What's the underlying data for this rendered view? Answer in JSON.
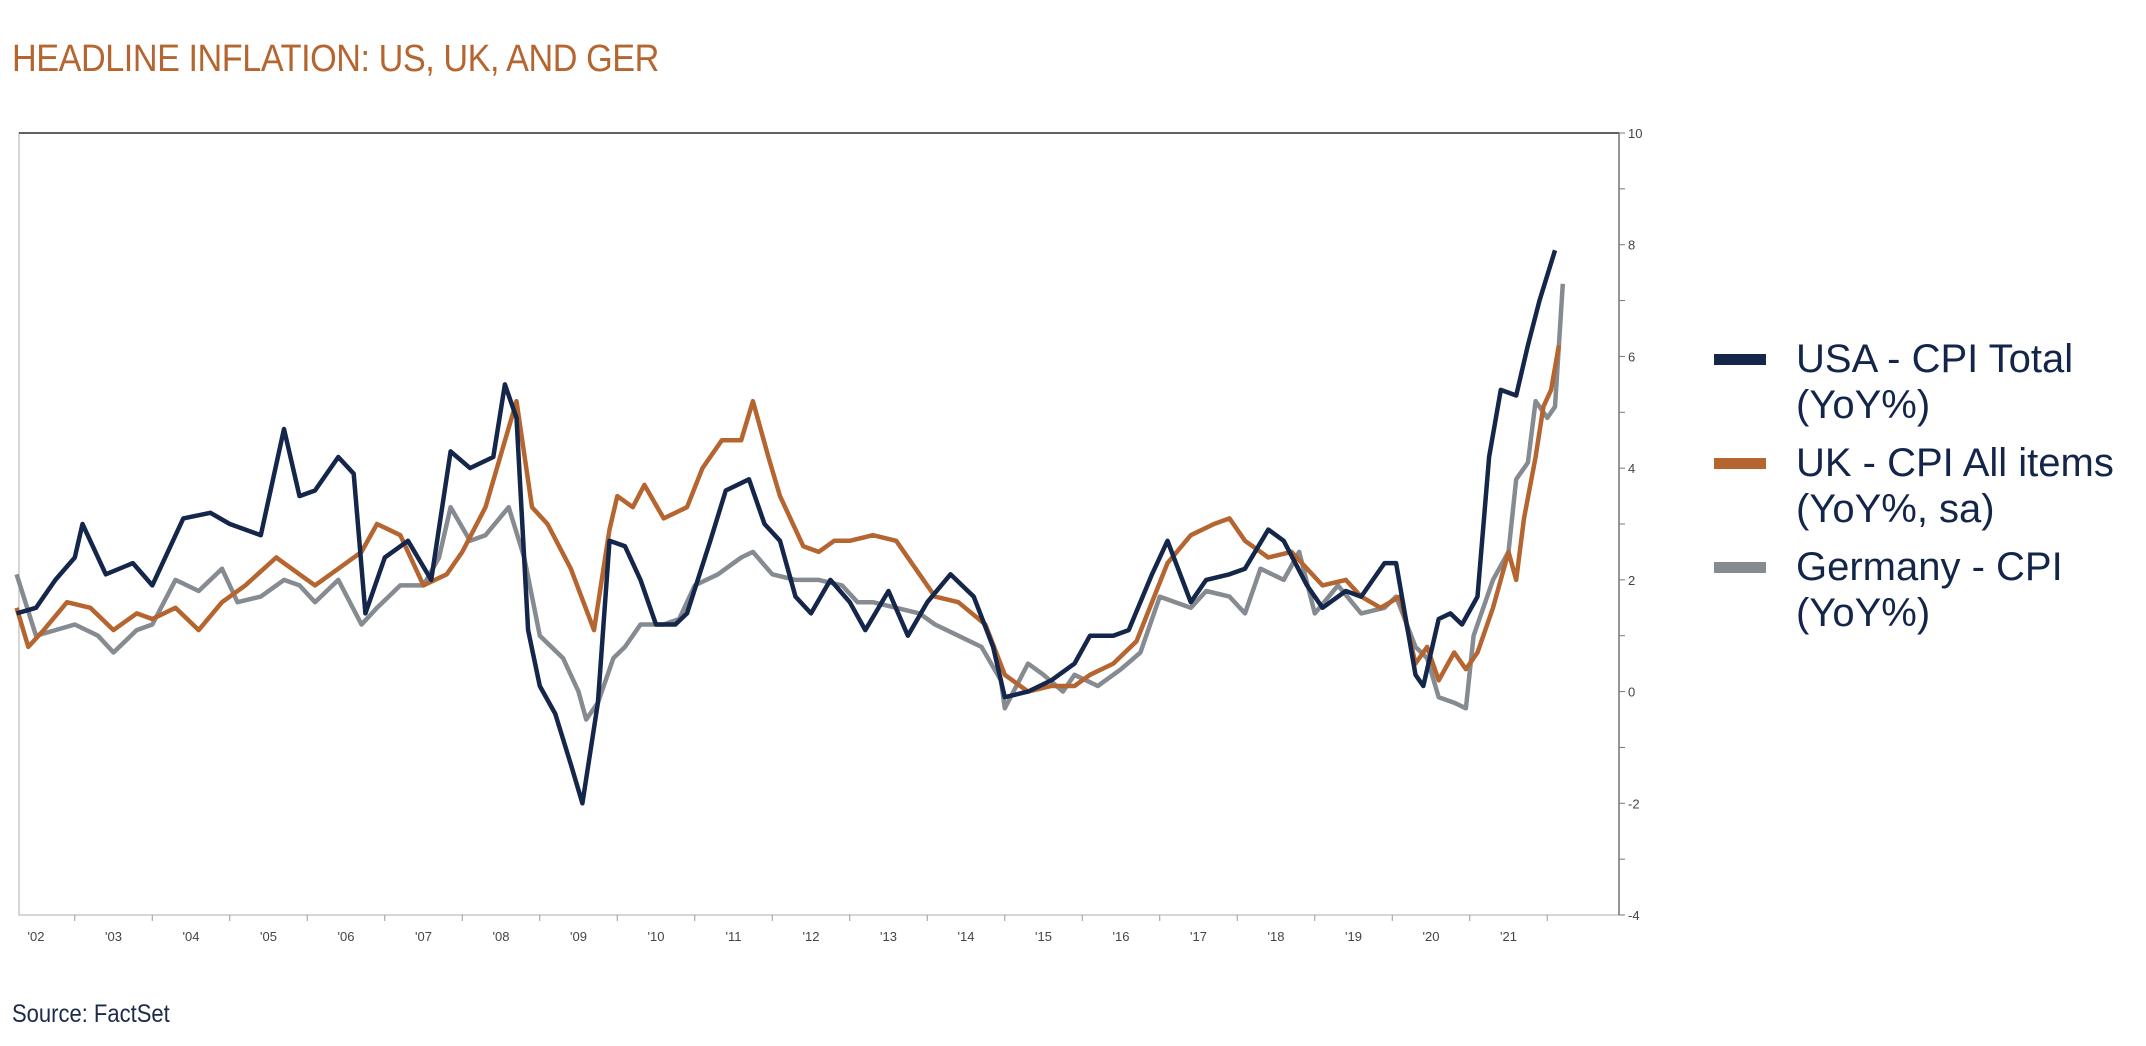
{
  "title": "HEADLINE INFLATION: US, UK, AND GER",
  "source": "Source: FactSet",
  "chart_data": {
    "type": "line",
    "title": "HEADLINE INFLATION: US, UK, AND GER",
    "xlabel": "",
    "ylabel": "",
    "x_tick_labels": [
      "'02",
      "'03",
      "'04",
      "'05",
      "'06",
      "'07",
      "'08",
      "'09",
      "'10",
      "'11",
      "'12",
      "'13",
      "'14",
      "'15",
      "'16",
      "'17",
      "'18",
      "'19",
      "'20",
      "'21"
    ],
    "y_tick_labels": [
      "10",
      "8",
      "6",
      "4",
      "2",
      "0",
      "-2",
      "-4"
    ],
    "ylim": [
      -4,
      10
    ],
    "xlim": [
      2002.2,
      2022.8
    ],
    "y_axis_side": "right",
    "grid": false,
    "legend_position": "right",
    "series": [
      {
        "name": "USA - CPI Total (YoY%)",
        "color": "#14264a",
        "points": [
          [
            2002.25,
            1.4
          ],
          [
            2002.5,
            1.5
          ],
          [
            2002.75,
            2.0
          ],
          [
            2003.0,
            2.4
          ],
          [
            2003.1,
            3.0
          ],
          [
            2003.4,
            2.1
          ],
          [
            2003.75,
            2.3
          ],
          [
            2004.0,
            1.9
          ],
          [
            2004.4,
            3.1
          ],
          [
            2004.75,
            3.2
          ],
          [
            2005.0,
            3.0
          ],
          [
            2005.4,
            2.8
          ],
          [
            2005.7,
            4.7
          ],
          [
            2005.9,
            3.5
          ],
          [
            2006.1,
            3.6
          ],
          [
            2006.4,
            4.2
          ],
          [
            2006.6,
            3.9
          ],
          [
            2006.75,
            1.4
          ],
          [
            2007.0,
            2.4
          ],
          [
            2007.3,
            2.7
          ],
          [
            2007.6,
            2.0
          ],
          [
            2007.85,
            4.3
          ],
          [
            2008.1,
            4.0
          ],
          [
            2008.4,
            4.2
          ],
          [
            2008.55,
            5.5
          ],
          [
            2008.7,
            4.9
          ],
          [
            2008.85,
            1.1
          ],
          [
            2009.0,
            0.1
          ],
          [
            2009.2,
            -0.4
          ],
          [
            2009.4,
            -1.3
          ],
          [
            2009.55,
            -2.0
          ],
          [
            2009.75,
            -0.2
          ],
          [
            2009.9,
            2.7
          ],
          [
            2010.1,
            2.6
          ],
          [
            2010.3,
            2.0
          ],
          [
            2010.5,
            1.2
          ],
          [
            2010.75,
            1.2
          ],
          [
            2010.9,
            1.4
          ],
          [
            2011.2,
            2.7
          ],
          [
            2011.4,
            3.6
          ],
          [
            2011.7,
            3.8
          ],
          [
            2011.9,
            3.0
          ],
          [
            2012.1,
            2.7
          ],
          [
            2012.3,
            1.7
          ],
          [
            2012.5,
            1.4
          ],
          [
            2012.75,
            2.0
          ],
          [
            2013.0,
            1.6
          ],
          [
            2013.2,
            1.1
          ],
          [
            2013.5,
            1.8
          ],
          [
            2013.75,
            1.0
          ],
          [
            2014.0,
            1.6
          ],
          [
            2014.3,
            2.1
          ],
          [
            2014.6,
            1.7
          ],
          [
            2014.85,
            0.8
          ],
          [
            2015.0,
            -0.1
          ],
          [
            2015.3,
            0.0
          ],
          [
            2015.6,
            0.2
          ],
          [
            2015.9,
            0.5
          ],
          [
            2016.1,
            1.0
          ],
          [
            2016.4,
            1.0
          ],
          [
            2016.6,
            1.1
          ],
          [
            2016.9,
            2.1
          ],
          [
            2017.1,
            2.7
          ],
          [
            2017.4,
            1.6
          ],
          [
            2017.6,
            2.0
          ],
          [
            2017.9,
            2.1
          ],
          [
            2018.1,
            2.2
          ],
          [
            2018.4,
            2.9
          ],
          [
            2018.6,
            2.7
          ],
          [
            2018.9,
            1.9
          ],
          [
            2019.1,
            1.5
          ],
          [
            2019.4,
            1.8
          ],
          [
            2019.6,
            1.7
          ],
          [
            2019.9,
            2.3
          ],
          [
            2020.05,
            2.3
          ],
          [
            2020.3,
            0.3
          ],
          [
            2020.4,
            0.1
          ],
          [
            2020.6,
            1.3
          ],
          [
            2020.75,
            1.4
          ],
          [
            2020.9,
            1.2
          ],
          [
            2021.1,
            1.7
          ],
          [
            2021.25,
            4.2
          ],
          [
            2021.4,
            5.4
          ],
          [
            2021.6,
            5.3
          ],
          [
            2021.75,
            6.2
          ],
          [
            2021.9,
            7.0
          ],
          [
            2022.1,
            7.9
          ]
        ]
      },
      {
        "name": "UK - CPI All items (YoY%, sa)",
        "color": "#b5652f",
        "points": [
          [
            2002.25,
            1.5
          ],
          [
            2002.4,
            0.8
          ],
          [
            2002.6,
            1.1
          ],
          [
            2002.9,
            1.6
          ],
          [
            2003.2,
            1.5
          ],
          [
            2003.5,
            1.1
          ],
          [
            2003.8,
            1.4
          ],
          [
            2004.0,
            1.3
          ],
          [
            2004.3,
            1.5
          ],
          [
            2004.6,
            1.1
          ],
          [
            2004.9,
            1.6
          ],
          [
            2005.2,
            1.9
          ],
          [
            2005.6,
            2.4
          ],
          [
            2005.9,
            2.1
          ],
          [
            2006.1,
            1.9
          ],
          [
            2006.4,
            2.2
          ],
          [
            2006.7,
            2.5
          ],
          [
            2006.9,
            3.0
          ],
          [
            2007.2,
            2.8
          ],
          [
            2007.5,
            1.9
          ],
          [
            2007.8,
            2.1
          ],
          [
            2008.0,
            2.5
          ],
          [
            2008.3,
            3.3
          ],
          [
            2008.7,
            5.2
          ],
          [
            2008.9,
            3.3
          ],
          [
            2009.1,
            3.0
          ],
          [
            2009.4,
            2.2
          ],
          [
            2009.7,
            1.1
          ],
          [
            2009.9,
            2.9
          ],
          [
            2010.0,
            3.5
          ],
          [
            2010.2,
            3.3
          ],
          [
            2010.35,
            3.7
          ],
          [
            2010.6,
            3.1
          ],
          [
            2010.9,
            3.3
          ],
          [
            2011.1,
            4.0
          ],
          [
            2011.35,
            4.5
          ],
          [
            2011.6,
            4.5
          ],
          [
            2011.75,
            5.2
          ],
          [
            2011.95,
            4.2
          ],
          [
            2012.1,
            3.5
          ],
          [
            2012.4,
            2.6
          ],
          [
            2012.6,
            2.5
          ],
          [
            2012.8,
            2.7
          ],
          [
            2013.0,
            2.7
          ],
          [
            2013.3,
            2.8
          ],
          [
            2013.6,
            2.7
          ],
          [
            2013.9,
            2.1
          ],
          [
            2014.1,
            1.7
          ],
          [
            2014.4,
            1.6
          ],
          [
            2014.75,
            1.2
          ],
          [
            2015.0,
            0.3
          ],
          [
            2015.3,
            0.0
          ],
          [
            2015.6,
            0.1
          ],
          [
            2015.9,
            0.1
          ],
          [
            2016.1,
            0.3
          ],
          [
            2016.4,
            0.5
          ],
          [
            2016.7,
            0.9
          ],
          [
            2016.9,
            1.6
          ],
          [
            2017.1,
            2.3
          ],
          [
            2017.4,
            2.8
          ],
          [
            2017.7,
            3.0
          ],
          [
            2017.9,
            3.1
          ],
          [
            2018.1,
            2.7
          ],
          [
            2018.4,
            2.4
          ],
          [
            2018.7,
            2.5
          ],
          [
            2018.9,
            2.2
          ],
          [
            2019.1,
            1.9
          ],
          [
            2019.4,
            2.0
          ],
          [
            2019.6,
            1.7
          ],
          [
            2019.85,
            1.5
          ],
          [
            2020.1,
            1.7
          ],
          [
            2020.3,
            0.5
          ],
          [
            2020.45,
            0.8
          ],
          [
            2020.6,
            0.2
          ],
          [
            2020.8,
            0.7
          ],
          [
            2020.95,
            0.4
          ],
          [
            2021.1,
            0.7
          ],
          [
            2021.3,
            1.5
          ],
          [
            2021.5,
            2.5
          ],
          [
            2021.6,
            2.0
          ],
          [
            2021.7,
            3.1
          ],
          [
            2021.85,
            4.2
          ],
          [
            2021.95,
            5.1
          ],
          [
            2022.05,
            5.4
          ],
          [
            2022.15,
            6.2
          ]
        ]
      },
      {
        "name": "Germany - CPI (YoY%)",
        "color": "#868b91",
        "points": [
          [
            2002.25,
            2.1
          ],
          [
            2002.5,
            1.0
          ],
          [
            2002.75,
            1.1
          ],
          [
            2003.0,
            1.2
          ],
          [
            2003.3,
            1.0
          ],
          [
            2003.5,
            0.7
          ],
          [
            2003.8,
            1.1
          ],
          [
            2004.0,
            1.2
          ],
          [
            2004.3,
            2.0
          ],
          [
            2004.6,
            1.8
          ],
          [
            2004.9,
            2.2
          ],
          [
            2005.1,
            1.6
          ],
          [
            2005.4,
            1.7
          ],
          [
            2005.7,
            2.0
          ],
          [
            2005.9,
            1.9
          ],
          [
            2006.1,
            1.6
          ],
          [
            2006.4,
            2.0
          ],
          [
            2006.7,
            1.2
          ],
          [
            2006.9,
            1.5
          ],
          [
            2007.2,
            1.9
          ],
          [
            2007.5,
            1.9
          ],
          [
            2007.7,
            2.4
          ],
          [
            2007.85,
            3.3
          ],
          [
            2008.1,
            2.7
          ],
          [
            2008.3,
            2.8
          ],
          [
            2008.6,
            3.3
          ],
          [
            2008.8,
            2.4
          ],
          [
            2009.0,
            1.0
          ],
          [
            2009.3,
            0.6
          ],
          [
            2009.5,
            0.0
          ],
          [
            2009.6,
            -0.5
          ],
          [
            2009.75,
            -0.2
          ],
          [
            2009.95,
            0.6
          ],
          [
            2010.1,
            0.8
          ],
          [
            2010.3,
            1.2
          ],
          [
            2010.6,
            1.2
          ],
          [
            2010.8,
            1.3
          ],
          [
            2011.0,
            1.9
          ],
          [
            2011.3,
            2.1
          ],
          [
            2011.6,
            2.4
          ],
          [
            2011.75,
            2.5
          ],
          [
            2012.0,
            2.1
          ],
          [
            2012.3,
            2.0
          ],
          [
            2012.6,
            2.0
          ],
          [
            2012.9,
            1.9
          ],
          [
            2013.1,
            1.6
          ],
          [
            2013.3,
            1.6
          ],
          [
            2013.6,
            1.5
          ],
          [
            2013.9,
            1.4
          ],
          [
            2014.1,
            1.2
          ],
          [
            2014.4,
            1.0
          ],
          [
            2014.7,
            0.8
          ],
          [
            2014.95,
            0.2
          ],
          [
            2015.0,
            -0.3
          ],
          [
            2015.3,
            0.5
          ],
          [
            2015.5,
            0.3
          ],
          [
            2015.75,
            0.0
          ],
          [
            2015.9,
            0.3
          ],
          [
            2016.2,
            0.1
          ],
          [
            2016.5,
            0.4
          ],
          [
            2016.75,
            0.7
          ],
          [
            2017.0,
            1.7
          ],
          [
            2017.2,
            1.6
          ],
          [
            2017.4,
            1.5
          ],
          [
            2017.6,
            1.8
          ],
          [
            2017.9,
            1.7
          ],
          [
            2018.1,
            1.4
          ],
          [
            2018.3,
            2.2
          ],
          [
            2018.6,
            2.0
          ],
          [
            2018.8,
            2.5
          ],
          [
            2019.0,
            1.4
          ],
          [
            2019.3,
            1.9
          ],
          [
            2019.6,
            1.4
          ],
          [
            2019.9,
            1.5
          ],
          [
            2020.05,
            1.7
          ],
          [
            2020.3,
            0.8
          ],
          [
            2020.45,
            0.6
          ],
          [
            2020.6,
            -0.1
          ],
          [
            2020.8,
            -0.2
          ],
          [
            2020.95,
            -0.3
          ],
          [
            2021.05,
            1.0
          ],
          [
            2021.3,
            2.0
          ],
          [
            2021.5,
            2.5
          ],
          [
            2021.6,
            3.8
          ],
          [
            2021.75,
            4.1
          ],
          [
            2021.85,
            5.2
          ],
          [
            2022.0,
            4.9
          ],
          [
            2022.1,
            5.1
          ],
          [
            2022.2,
            7.3
          ]
        ]
      }
    ]
  },
  "legend": [
    {
      "line1": "USA - CPI Total",
      "line2": "(YoY%)",
      "color": "#14264a"
    },
    {
      "line1": "UK - CPI All items",
      "line2": "(YoY%, sa)",
      "color": "#b5652f"
    },
    {
      "line1": "Germany - CPI",
      "line2": "(YoY%)",
      "color": "#868b91"
    }
  ]
}
